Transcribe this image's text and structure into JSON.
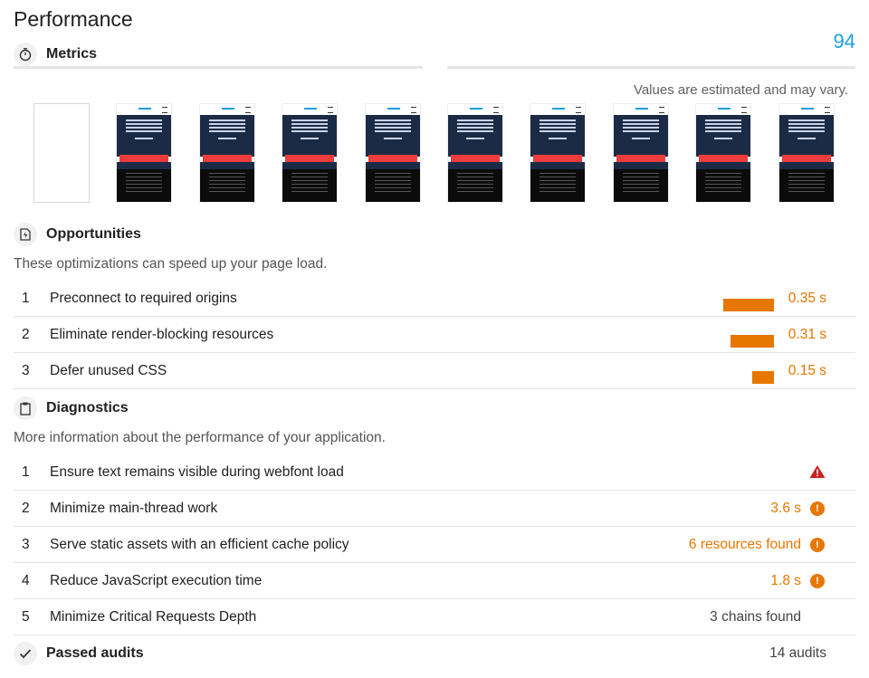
{
  "header": {
    "title": "Performance",
    "score": "94"
  },
  "metrics": {
    "heading": "Metrics",
    "icon": "stopwatch-icon",
    "note": "Values are estimated and may vary."
  },
  "filmstrip": {
    "frame_count": 10,
    "blank_first": true
  },
  "opportunities": {
    "heading": "Opportunities",
    "icon": "lightning-page-icon",
    "description": "These optimizations can speed up your page load.",
    "items": [
      {
        "num": "1",
        "label": "Preconnect to required origins",
        "value": "0.35 s",
        "savings_fraction": 1.0
      },
      {
        "num": "2",
        "label": "Eliminate render-blocking resources",
        "value": "0.31 s",
        "savings_fraction": 0.86
      },
      {
        "num": "3",
        "label": "Defer unused CSS",
        "value": "0.15 s",
        "savings_fraction": 0.43
      }
    ]
  },
  "diagnostics": {
    "heading": "Diagnostics",
    "icon": "clipboard-icon",
    "description": "More information about the performance of your application.",
    "items": [
      {
        "num": "1",
        "label": "Ensure text remains visible during webfont load",
        "value": "",
        "status": "fail"
      },
      {
        "num": "2",
        "label": "Minimize main-thread work",
        "value": "3.6 s",
        "status": "average"
      },
      {
        "num": "3",
        "label": "Serve static assets with an efficient cache policy",
        "value": "6 resources found",
        "status": "average"
      },
      {
        "num": "4",
        "label": "Reduce JavaScript execution time",
        "value": "1.8 s",
        "status": "average"
      },
      {
        "num": "5",
        "label": "Minimize Critical Requests Depth",
        "value": "3 chains found",
        "status": "informative"
      }
    ]
  },
  "passed": {
    "heading": "Passed audits",
    "icon": "checkmark-icon",
    "count": "14 audits"
  },
  "colors": {
    "accent": "#1a9fe0",
    "average": "#e67700",
    "fail": "#c7221f"
  }
}
